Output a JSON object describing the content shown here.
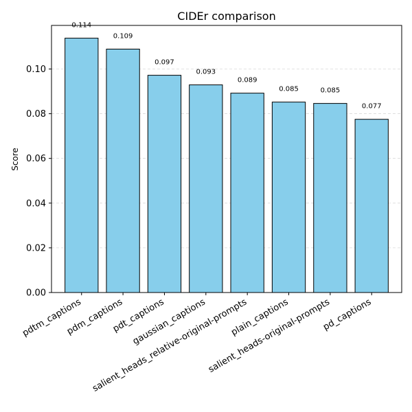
{
  "chart_data": {
    "type": "bar",
    "title": "CIDEr comparison",
    "xlabel": "",
    "ylabel": "Score",
    "categories": [
      "pdtm_captions",
      "pdm_captions",
      "pdt_captions",
      "gaussian_captions",
      "salient_heads_relative-original-prompts",
      "plain_captions",
      "salient_heads-original-prompts",
      "pd_captions"
    ],
    "values": [
      0.1138,
      0.1089,
      0.0972,
      0.0929,
      0.0892,
      0.0852,
      0.0846,
      0.0775
    ],
    "data_labels": [
      "0.114",
      "0.109",
      "0.097",
      "0.093",
      "0.089",
      "0.085",
      "0.085",
      "0.077"
    ],
    "ylim": [
      0,
      0.1195
    ],
    "yticks": [
      0.0,
      0.02,
      0.04,
      0.06,
      0.08,
      0.1
    ],
    "ytick_labels": [
      "0.00",
      "0.02",
      "0.04",
      "0.06",
      "0.08",
      "0.10"
    ],
    "grid": "y-dashed",
    "legend": "none",
    "bar_color": "#87ceeb",
    "bar_edge_color": "#000000"
  }
}
